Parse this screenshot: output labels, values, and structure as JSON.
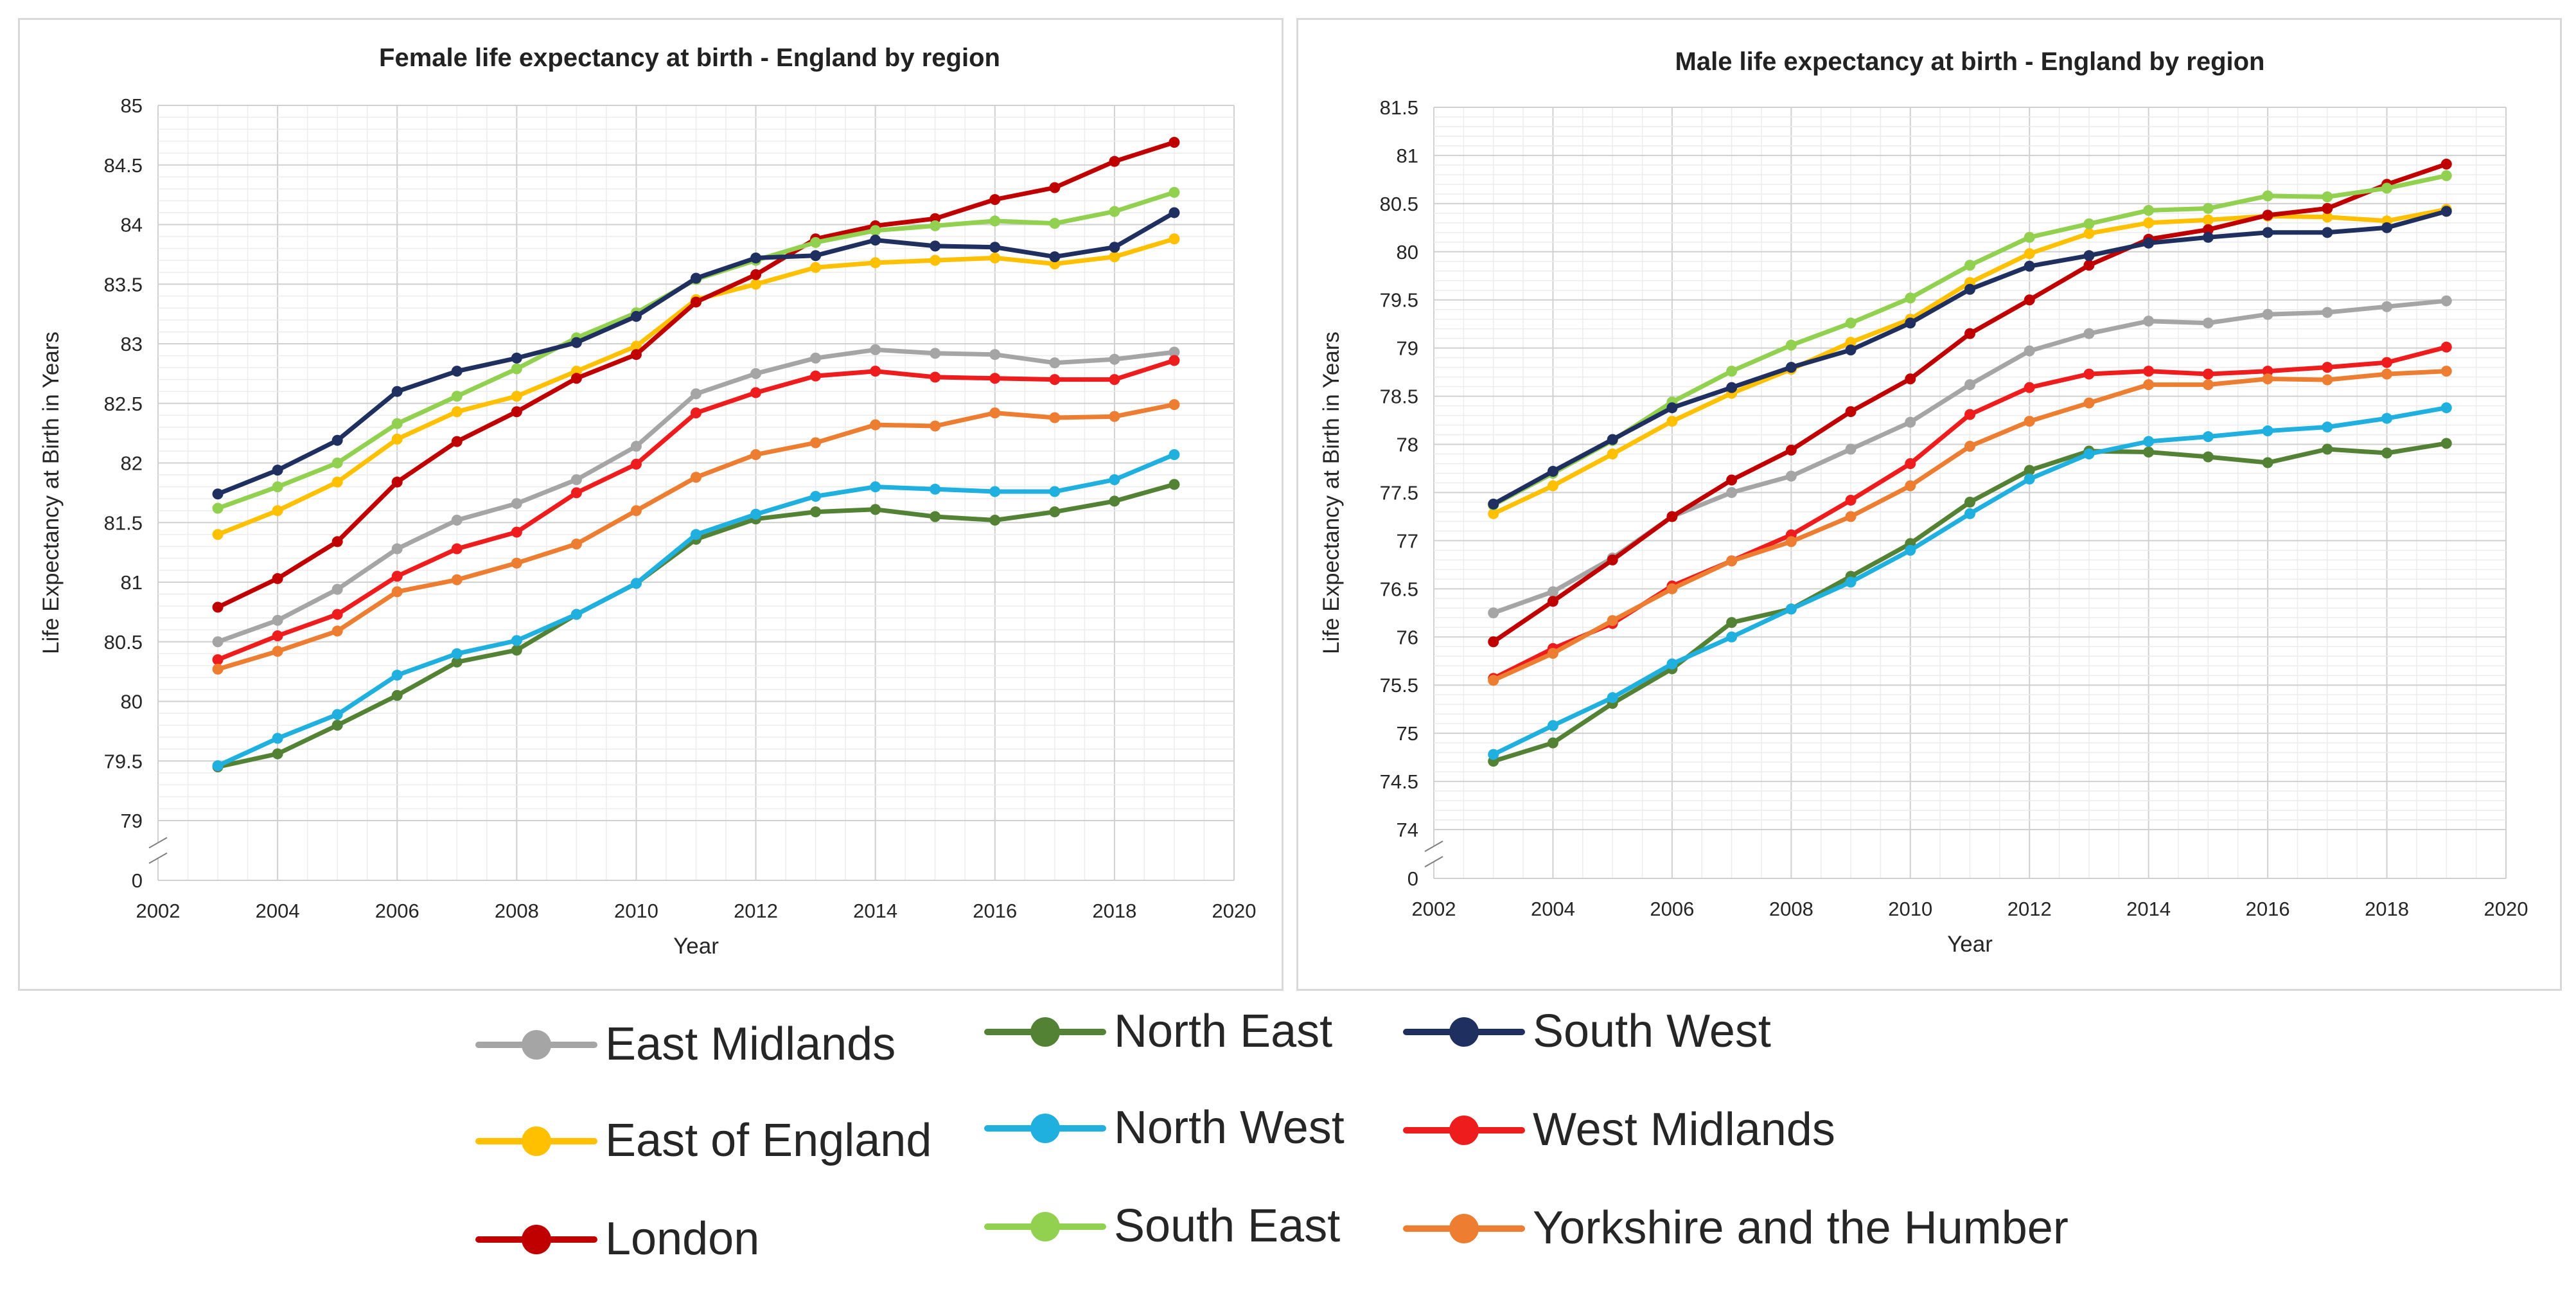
{
  "chart_data": [
    {
      "type": "line",
      "title": "Female life expectancy at birth - England by region",
      "xlabel": "Year",
      "ylabel": "Life Expectancy at Birth in Years",
      "xlim": [
        2002,
        2020
      ],
      "x_ticks": [
        2002,
        2004,
        2006,
        2008,
        2010,
        2012,
        2014,
        2016,
        2018,
        2020
      ],
      "ylim": [
        79,
        85
      ],
      "y_ticks": [
        79,
        79.5,
        80,
        80.5,
        81,
        81.5,
        82,
        82.5,
        83,
        83.5,
        84,
        84.5,
        85
      ],
      "y_tick_labels": [
        "79",
        "79.5",
        "80",
        "80.5",
        "81",
        "81.5",
        "82",
        "82.5",
        "83",
        "83.5",
        "84",
        "84.5",
        "85"
      ],
      "y_break_label": "0",
      "x": [
        2003,
        2004,
        2005,
        2006,
        2007,
        2008,
        2009,
        2010,
        2011,
        2012,
        2013,
        2014,
        2015,
        2016,
        2017,
        2018,
        2019
      ],
      "series": [
        {
          "name": "East Midlands",
          "color": "#a5a5a5",
          "values": [
            80.5,
            80.68,
            80.94,
            81.28,
            81.52,
            81.66,
            81.86,
            82.14,
            82.58,
            82.75,
            82.88,
            82.95,
            82.92,
            82.91,
            82.84,
            82.87,
            82.93
          ]
        },
        {
          "name": "East of England",
          "color": "#ffc000",
          "values": [
            81.4,
            81.6,
            81.84,
            82.2,
            82.43,
            82.56,
            82.77,
            82.98,
            83.37,
            83.5,
            83.64,
            83.68,
            83.7,
            83.72,
            83.67,
            83.73,
            83.88
          ]
        },
        {
          "name": "London",
          "color": "#c00000",
          "values": [
            80.79,
            81.03,
            81.34,
            81.84,
            82.18,
            82.43,
            82.71,
            82.91,
            83.35,
            83.58,
            83.88,
            83.99,
            84.05,
            84.21,
            84.31,
            84.53,
            84.69
          ]
        },
        {
          "name": "North East",
          "color": "#548235",
          "values": [
            79.45,
            79.56,
            79.8,
            80.05,
            80.33,
            80.43,
            80.73,
            80.99,
            81.36,
            81.53,
            81.59,
            81.61,
            81.55,
            81.52,
            81.59,
            81.68,
            81.82
          ]
        },
        {
          "name": "North West",
          "color": "#1fb0e0",
          "values": [
            79.46,
            79.69,
            79.89,
            80.22,
            80.4,
            80.51,
            80.73,
            80.99,
            81.4,
            81.57,
            81.72,
            81.8,
            81.78,
            81.76,
            81.76,
            81.86,
            82.07
          ]
        },
        {
          "name": "South East",
          "color": "#92d050",
          "values": [
            81.62,
            81.8,
            82.0,
            82.33,
            82.56,
            82.79,
            83.05,
            83.26,
            83.54,
            83.7,
            83.85,
            83.95,
            83.99,
            84.03,
            84.01,
            84.11,
            84.27
          ]
        },
        {
          "name": "South West",
          "color": "#1f2f5f",
          "values": [
            81.74,
            81.94,
            82.19,
            82.6,
            82.77,
            82.88,
            83.01,
            83.23,
            83.55,
            83.72,
            83.74,
            83.87,
            83.82,
            83.81,
            83.73,
            83.81,
            84.1
          ]
        },
        {
          "name": "West Midlands",
          "color": "#ee1c1c",
          "values": [
            80.35,
            80.55,
            80.73,
            81.05,
            81.28,
            81.42,
            81.75,
            81.99,
            82.42,
            82.59,
            82.73,
            82.77,
            82.72,
            82.71,
            82.7,
            82.7,
            82.86
          ]
        },
        {
          "name": "Yorkshire and the Humber",
          "color": "#ed7d31",
          "values": [
            80.27,
            80.42,
            80.59,
            80.92,
            81.02,
            81.16,
            81.32,
            81.6,
            81.88,
            82.07,
            82.17,
            82.32,
            82.31,
            82.42,
            82.38,
            82.39,
            82.49
          ]
        }
      ]
    },
    {
      "type": "line",
      "title": "Male life expectancy at birth - England by region",
      "xlabel": "Year",
      "ylabel": "Life Expectancy at Birth in Years",
      "xlim": [
        2002,
        2020
      ],
      "x_ticks": [
        2002,
        2004,
        2006,
        2008,
        2010,
        2012,
        2014,
        2016,
        2018,
        2020
      ],
      "ylim": [
        74,
        81.5
      ],
      "y_ticks": [
        74,
        74.5,
        75,
        75.5,
        76,
        76.5,
        77,
        77.5,
        78,
        78.5,
        79,
        79.5,
        80,
        80.5,
        81,
        81.5
      ],
      "y_tick_labels": [
        "74",
        "74.5",
        "75",
        "75.5",
        "76",
        "76.5",
        "77",
        "77.5",
        "78",
        "78.5",
        "79",
        "79.5",
        "80",
        "80.5",
        "81",
        "81.5"
      ],
      "y_break_label": "0",
      "x": [
        2003,
        2004,
        2005,
        2006,
        2007,
        2008,
        2009,
        2010,
        2011,
        2012,
        2013,
        2014,
        2015,
        2016,
        2017,
        2018,
        2019
      ],
      "series": [
        {
          "name": "East Midlands",
          "color": "#a5a5a5",
          "values": [
            76.25,
            76.47,
            76.82,
            77.25,
            77.5,
            77.67,
            77.95,
            78.23,
            78.62,
            78.97,
            79.15,
            79.28,
            79.26,
            79.35,
            79.37,
            79.43,
            79.49
          ]
        },
        {
          "name": "East of England",
          "color": "#ffc000",
          "values": [
            77.28,
            77.57,
            77.9,
            78.24,
            78.53,
            78.78,
            79.06,
            79.3,
            79.68,
            79.98,
            80.19,
            80.3,
            80.33,
            80.37,
            80.36,
            80.32,
            80.44
          ]
        },
        {
          "name": "London",
          "color": "#c00000",
          "values": [
            75.95,
            76.37,
            76.8,
            77.25,
            77.63,
            77.94,
            78.34,
            78.68,
            79.15,
            79.5,
            79.86,
            80.13,
            80.23,
            80.38,
            80.45,
            80.7,
            80.91
          ]
        },
        {
          "name": "North East",
          "color": "#548235",
          "values": [
            74.71,
            74.9,
            75.31,
            75.67,
            76.15,
            76.29,
            76.63,
            76.97,
            77.4,
            77.73,
            77.93,
            77.92,
            77.87,
            77.81,
            77.95,
            77.91,
            78.01
          ]
        },
        {
          "name": "North West",
          "color": "#1fb0e0",
          "values": [
            74.78,
            75.08,
            75.37,
            75.72,
            76.0,
            76.29,
            76.57,
            76.9,
            77.28,
            77.64,
            77.9,
            78.03,
            78.08,
            78.14,
            78.18,
            78.27,
            78.38
          ]
        },
        {
          "name": "South East",
          "color": "#92d050",
          "values": [
            77.37,
            77.7,
            78.04,
            78.44,
            78.76,
            79.03,
            79.26,
            79.52,
            79.86,
            80.15,
            80.29,
            80.43,
            80.45,
            80.58,
            80.57,
            80.66,
            80.79
          ]
        },
        {
          "name": "South West",
          "color": "#1f2f5f",
          "values": [
            77.38,
            77.72,
            78.05,
            78.38,
            78.59,
            78.8,
            78.98,
            79.26,
            79.61,
            79.85,
            79.96,
            80.09,
            80.15,
            80.2,
            80.2,
            80.25,
            80.42
          ]
        },
        {
          "name": "West Midlands",
          "color": "#ee1c1c",
          "values": [
            75.57,
            75.88,
            76.14,
            76.53,
            76.79,
            77.06,
            77.42,
            77.8,
            78.31,
            78.59,
            78.73,
            78.76,
            78.73,
            78.76,
            78.8,
            78.85,
            79.01
          ]
        },
        {
          "name": "Yorkshire and the Humber",
          "color": "#ed7d31",
          "values": [
            75.55,
            75.83,
            76.17,
            76.5,
            76.79,
            76.99,
            77.25,
            77.57,
            77.98,
            78.24,
            78.43,
            78.62,
            78.62,
            78.68,
            78.67,
            78.73,
            78.76
          ]
        }
      ]
    }
  ],
  "legend": [
    {
      "name": "East Midlands",
      "color": "#a5a5a5"
    },
    {
      "name": "North East",
      "color": "#548235"
    },
    {
      "name": "South West",
      "color": "#1f2f5f"
    },
    {
      "name": "East of England",
      "color": "#ffc000"
    },
    {
      "name": "North West",
      "color": "#1fb0e0"
    },
    {
      "name": "West Midlands",
      "color": "#ee1c1c"
    },
    {
      "name": "London",
      "color": "#c00000"
    },
    {
      "name": "South East",
      "color": "#92d050"
    },
    {
      "name": "Yorkshire and the Humber",
      "color": "#ed7d31"
    }
  ]
}
